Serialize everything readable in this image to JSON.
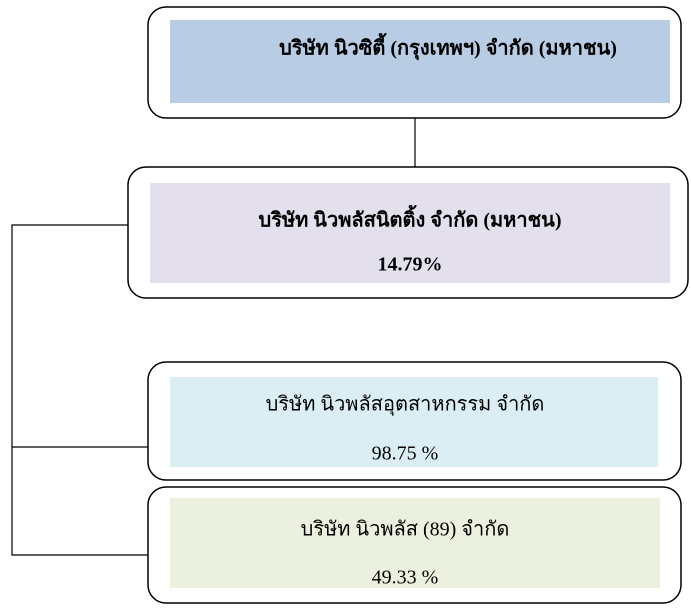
{
  "nodes": [
    {
      "label": "บริษัท นิวซิตี้ (กรุงเทพฯ) จำกัด (มหาชน)"
    },
    {
      "label": "บริษัท นิวพลัสนิตติ้ง จำกัด (มหาชน)",
      "share": "14.79%"
    },
    {
      "label": "บริษัท นิวพลัสอุตสาหกรรม จำกัด",
      "share": "98.75 %"
    },
    {
      "label": "บริษัท นิวพลัส (89) จำกัด",
      "share": "49.33 %"
    }
  ]
}
